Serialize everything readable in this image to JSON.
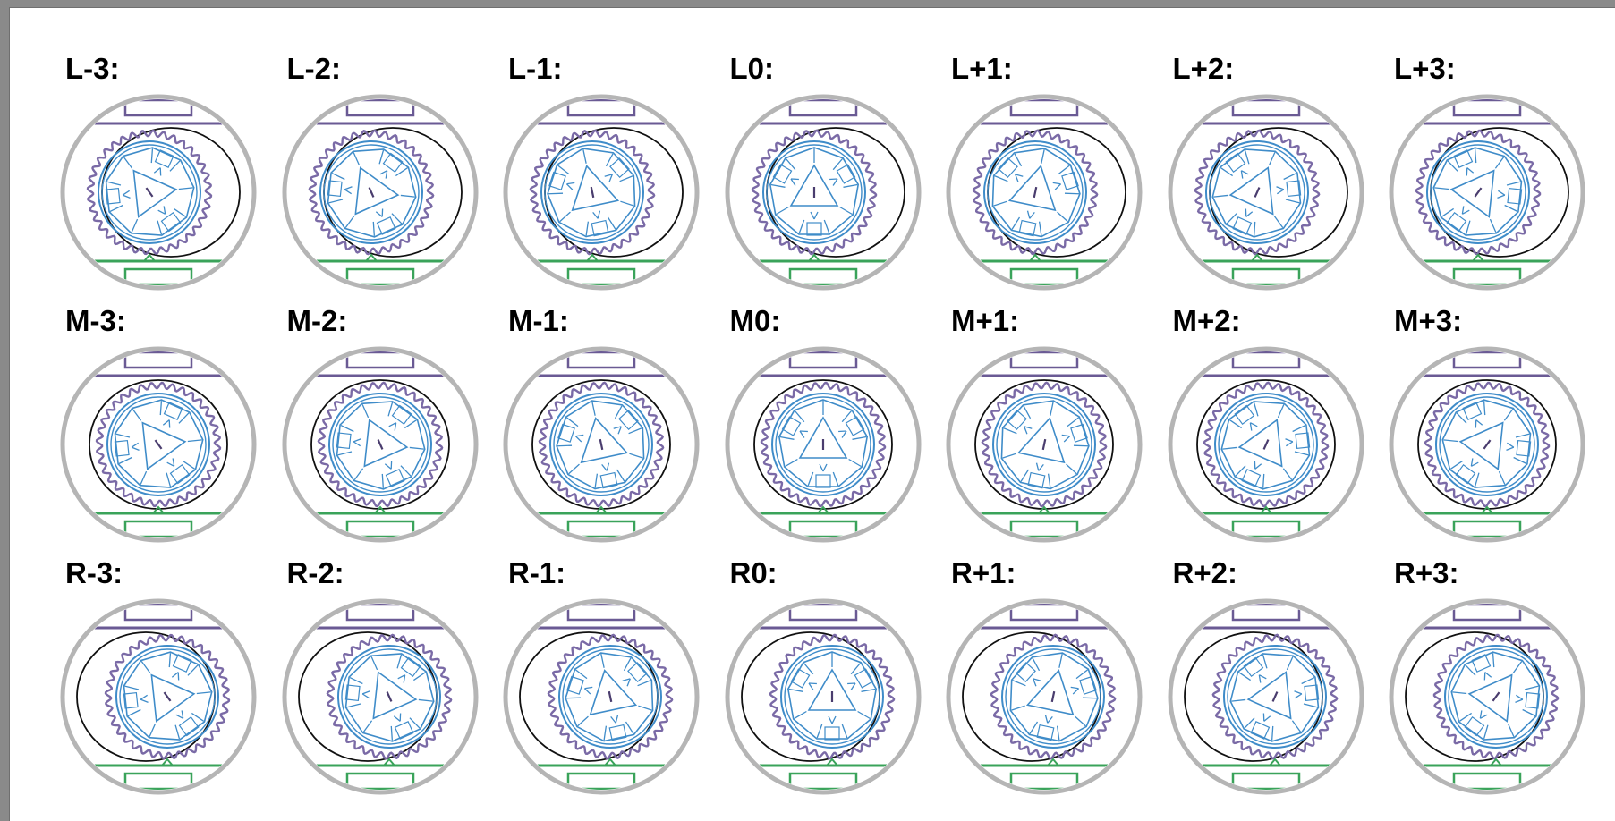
{
  "rows": [
    {
      "row_id": "L",
      "items": [
        {
          "label": "L-3:",
          "offset": -3
        },
        {
          "label": "L-2:",
          "offset": -2
        },
        {
          "label": "L-1:",
          "offset": -1
        },
        {
          "label": "L0:",
          "offset": 0
        },
        {
          "label": "L+1:",
          "offset": 1
        },
        {
          "label": "L+2:",
          "offset": 2
        },
        {
          "label": "L+3:",
          "offset": 3
        }
      ]
    },
    {
      "row_id": "M",
      "items": [
        {
          "label": "M-3:",
          "offset": -3
        },
        {
          "label": "M-2:",
          "offset": -2
        },
        {
          "label": "M-1:",
          "offset": -1
        },
        {
          "label": "M0:",
          "offset": 0
        },
        {
          "label": "M+1:",
          "offset": 1
        },
        {
          "label": "M+2:",
          "offset": 2
        },
        {
          "label": "M+3:",
          "offset": 3
        }
      ]
    },
    {
      "row_id": "R",
      "items": [
        {
          "label": "R-3:",
          "offset": -3
        },
        {
          "label": "R-2:",
          "offset": -2
        },
        {
          "label": "R-1:",
          "offset": -1
        },
        {
          "label": "R0:",
          "offset": 0
        },
        {
          "label": "R+1:",
          "offset": 1
        },
        {
          "label": "R+2:",
          "offset": 2
        },
        {
          "label": "R+3:",
          "offset": 3
        }
      ]
    }
  ],
  "colors": {
    "outer_ring": "#b5b5b5",
    "top_bar": "#6a5a94",
    "bottom_bar": "#3aa35a",
    "wavy_gear": "#7a6aa6",
    "inner_mechanism": "#3f8cc9",
    "housing_outline": "#111111"
  },
  "icons": {
    "dial": "gear-mechanism-diagram"
  }
}
